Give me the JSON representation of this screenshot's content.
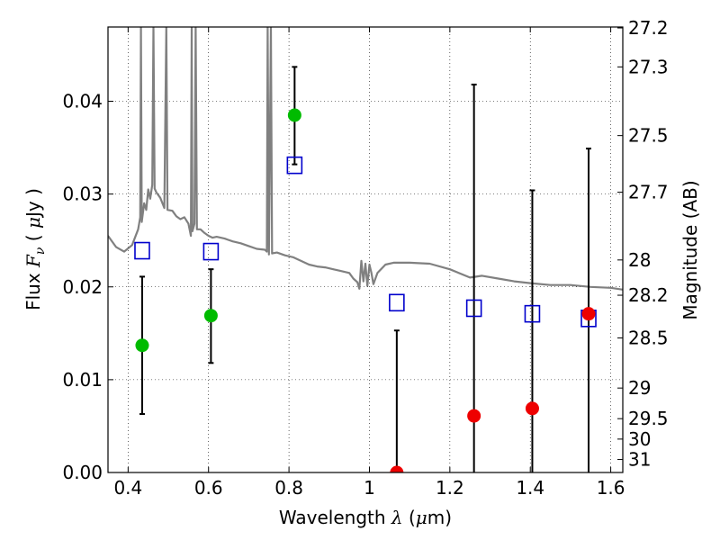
{
  "chart_data": {
    "type": "scatter",
    "title": "",
    "xlabel": "Wavelength",
    "xlabel_symbol": "λ",
    "xlabel_unit": "(",
    "xlabel_unit_mu": "μ",
    "xlabel_unit_end": "m)",
    "ylabel": "Flux",
    "ylabel_symbol": "F",
    "ylabel_sub": "ν",
    "ylabel_unit": "( ",
    "ylabel_unit_mu": "μ",
    "ylabel_unit_end": "Jy )",
    "y2label": "Magnitude (AB)",
    "xlim": [
      0.35,
      1.63
    ],
    "ylim": [
      0.0,
      0.048
    ],
    "grid": true,
    "xticks": [
      0.4,
      0.6,
      0.8,
      1.0,
      1.2,
      1.4,
      1.6
    ],
    "xtick_labels": [
      "0.4",
      "0.6",
      "0.8",
      "1",
      "1.2",
      "1.4",
      "1.6"
    ],
    "yticks": [
      0.0,
      0.01,
      0.02,
      0.03,
      0.04
    ],
    "ytick_labels": [
      "0.00",
      "0.01",
      "0.02",
      "0.03",
      "0.04"
    ],
    "y2ticks": [
      {
        "label": "27.2",
        "flux": 0.0479
      },
      {
        "label": "27.3",
        "flux": 0.0437
      },
      {
        "label": "27.5",
        "flux": 0.0363
      },
      {
        "label": "27.7",
        "flux": 0.0302
      },
      {
        "label": "28",
        "flux": 0.0229
      },
      {
        "label": "28.2",
        "flux": 0.0191
      },
      {
        "label": "28.5",
        "flux": 0.0145
      },
      {
        "label": "29",
        "flux": 0.0091
      },
      {
        "label": "29.5",
        "flux": 0.0058
      },
      {
        "label": "30",
        "flux": 0.0036
      },
      {
        "label": "31",
        "flux": 0.0014
      }
    ],
    "series": [
      {
        "marker": "circle",
        "points": [
          {
            "x": 0.435,
            "y": 0.0137,
            "yerr_low": 0.0063,
            "yerr_high": 0.0211,
            "color": "#00bb00"
          },
          {
            "x": 0.606,
            "y": 0.0169,
            "yerr_low": 0.0118,
            "yerr_high": 0.0219,
            "color": "#00bb00"
          },
          {
            "x": 0.814,
            "y": 0.0385,
            "yerr_low": 0.0332,
            "yerr_high": 0.0437,
            "color": "#00bb00"
          },
          {
            "x": 1.068,
            "y": 0.0,
            "yerr_low": 0.0,
            "yerr_high": 0.0153,
            "color": "#ee0000"
          },
          {
            "x": 1.26,
            "y": 0.0061,
            "yerr_low": 0.0,
            "yerr_high": 0.0418,
            "color": "#ee0000"
          },
          {
            "x": 1.405,
            "y": 0.0069,
            "yerr_low": 0.0,
            "yerr_high": 0.0304,
            "color": "#ee0000"
          },
          {
            "x": 1.545,
            "y": 0.0171,
            "yerr_low": 0.0,
            "yerr_high": 0.0349,
            "color": "#ee0000"
          }
        ]
      },
      {
        "marker": "open-square",
        "color": "#0000cc",
        "points": [
          {
            "x": 0.435,
            "y": 0.0239
          },
          {
            "x": 0.606,
            "y": 0.0238
          },
          {
            "x": 0.814,
            "y": 0.0331
          },
          {
            "x": 1.068,
            "y": 0.0183
          },
          {
            "x": 1.26,
            "y": 0.0177
          },
          {
            "x": 1.405,
            "y": 0.0171
          },
          {
            "x": 1.545,
            "y": 0.0166
          }
        ]
      },
      {
        "marker": "line",
        "color": "#808080",
        "points": [
          [
            0.35,
            0.0255
          ],
          [
            0.37,
            0.0243
          ],
          [
            0.39,
            0.0238
          ],
          [
            0.41,
            0.0245
          ],
          [
            0.425,
            0.0262
          ],
          [
            0.43,
            0.0275
          ],
          [
            0.432,
            0.048
          ],
          [
            0.434,
            0.027
          ],
          [
            0.44,
            0.029
          ],
          [
            0.445,
            0.0283
          ],
          [
            0.45,
            0.0305
          ],
          [
            0.455,
            0.0295
          ],
          [
            0.46,
            0.031
          ],
          [
            0.463,
            0.048
          ],
          [
            0.466,
            0.0306
          ],
          [
            0.47,
            0.0302
          ],
          [
            0.48,
            0.0296
          ],
          [
            0.49,
            0.0285
          ],
          [
            0.495,
            0.048
          ],
          [
            0.498,
            0.0283
          ],
          [
            0.51,
            0.0282
          ],
          [
            0.52,
            0.0276
          ],
          [
            0.53,
            0.0273
          ],
          [
            0.54,
            0.0275
          ],
          [
            0.55,
            0.0268
          ],
          [
            0.556,
            0.0255
          ],
          [
            0.558,
            0.048
          ],
          [
            0.56,
            0.026
          ],
          [
            0.565,
            0.0268
          ],
          [
            0.568,
            0.048
          ],
          [
            0.571,
            0.0262
          ],
          [
            0.58,
            0.0262
          ],
          [
            0.59,
            0.0258
          ],
          [
            0.6,
            0.0255
          ],
          [
            0.61,
            0.0253
          ],
          [
            0.62,
            0.0254
          ],
          [
            0.64,
            0.0252
          ],
          [
            0.66,
            0.0249
          ],
          [
            0.68,
            0.0247
          ],
          [
            0.7,
            0.0244
          ],
          [
            0.72,
            0.0241
          ],
          [
            0.74,
            0.024
          ],
          [
            0.745,
            0.0238
          ],
          [
            0.747,
            0.048
          ],
          [
            0.75,
            0.0235
          ],
          [
            0.755,
            0.048
          ],
          [
            0.758,
            0.0236
          ],
          [
            0.77,
            0.0237
          ],
          [
            0.79,
            0.0234
          ],
          [
            0.81,
            0.0232
          ],
          [
            0.83,
            0.0228
          ],
          [
            0.85,
            0.0224
          ],
          [
            0.87,
            0.0222
          ],
          [
            0.89,
            0.0221
          ],
          [
            0.91,
            0.0219
          ],
          [
            0.93,
            0.0217
          ],
          [
            0.95,
            0.0215
          ],
          [
            0.96,
            0.0209
          ],
          [
            0.97,
            0.0205
          ],
          [
            0.975,
            0.0198
          ],
          [
            0.98,
            0.0228
          ],
          [
            0.985,
            0.0206
          ],
          [
            0.99,
            0.0225
          ],
          [
            0.995,
            0.0201
          ],
          [
            1.0,
            0.0224
          ],
          [
            1.005,
            0.0215
          ],
          [
            1.01,
            0.0203
          ],
          [
            1.02,
            0.0215
          ],
          [
            1.04,
            0.0224
          ],
          [
            1.06,
            0.0226
          ],
          [
            1.1,
            0.0226
          ],
          [
            1.15,
            0.0225
          ],
          [
            1.2,
            0.0219
          ],
          [
            1.25,
            0.021
          ],
          [
            1.28,
            0.0212
          ],
          [
            1.32,
            0.0209
          ],
          [
            1.36,
            0.0206
          ],
          [
            1.4,
            0.0204
          ],
          [
            1.45,
            0.0202
          ],
          [
            1.5,
            0.0202
          ],
          [
            1.55,
            0.02
          ],
          [
            1.6,
            0.0199
          ],
          [
            1.63,
            0.0197
          ]
        ]
      }
    ]
  }
}
